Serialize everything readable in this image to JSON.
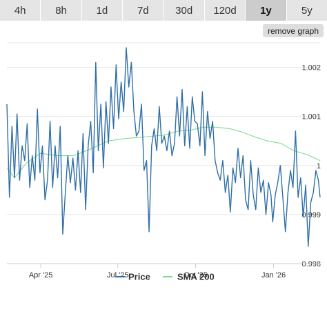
{
  "toolbar": {
    "tabs": [
      {
        "label": "4h"
      },
      {
        "label": "8h"
      },
      {
        "label": "1d"
      },
      {
        "label": "7d"
      },
      {
        "label": "30d"
      },
      {
        "label": "120d"
      },
      {
        "label": "1y"
      },
      {
        "label": "5y"
      }
    ],
    "active_tab": "1y",
    "remove_graph_label": "remove graph"
  },
  "colors": {
    "price": "#2f6ea8",
    "sma": "#7ddc90",
    "active_tab_bg": "#cccccc",
    "tab_bg": "#e5e5e5"
  },
  "chart_data": {
    "type": "line",
    "x_range": [
      "2025-02-20",
      "2026-02-25"
    ],
    "ylim": [
      0.998,
      1.0025
    ],
    "y_ticks": [
      {
        "value": 0.998,
        "label": "0.998"
      },
      {
        "value": 0.999,
        "label": "0.999"
      },
      {
        "value": 1.0,
        "label": "1"
      },
      {
        "value": 1.001,
        "label": "1.001"
      },
      {
        "value": 1.002,
        "label": "1.002"
      }
    ],
    "x_ticks": [
      {
        "date": "2025-04-01",
        "label": "Apr '25"
      },
      {
        "date": "2025-07-01",
        "label": "Jul '25"
      },
      {
        "date": "2025-10-01",
        "label": "Oct '25"
      },
      {
        "date": "2026-01-01",
        "label": "Jan '26"
      }
    ],
    "grid": true,
    "legend_position": "bottom",
    "series": [
      {
        "name": "Price",
        "points": [
          [
            "2025-02-20",
            1.00125
          ],
          [
            "2025-02-23",
            0.99935
          ],
          [
            "2025-02-26",
            1.0008
          ],
          [
            "2025-03-01",
            0.99975
          ],
          [
            "2025-03-04",
            1.00105
          ],
          [
            "2025-03-07",
            0.9997
          ],
          [
            "2025-03-10",
            1.0004
          ],
          [
            "2025-03-13",
            1.0001
          ],
          [
            "2025-03-16",
            1.00085
          ],
          [
            "2025-03-19",
            0.99955
          ],
          [
            "2025-03-22",
            1.0002
          ],
          [
            "2025-03-25",
            0.9997
          ],
          [
            "2025-03-28",
            1.00115
          ],
          [
            "2025-03-31",
            0.99985
          ],
          [
            "2025-04-03",
            1.0004
          ],
          [
            "2025-04-06",
            0.9993
          ],
          [
            "2025-04-09",
            0.9997
          ],
          [
            "2025-04-12",
            1.0009
          ],
          [
            "2025-04-15",
            0.99955
          ],
          [
            "2025-04-18",
            1.0004
          ],
          [
            "2025-04-21",
            0.99975
          ],
          [
            "2025-04-24",
            1.0008
          ],
          [
            "2025-04-27",
            0.9986
          ],
          [
            "2025-04-30",
            0.99945
          ],
          [
            "2025-05-03",
            1.0002
          ],
          [
            "2025-05-06",
            0.99965
          ],
          [
            "2025-05-09",
            1.00015
          ],
          [
            "2025-05-12",
            0.9995
          ],
          [
            "2025-05-15",
            1.0003
          ],
          [
            "2025-05-18",
            0.99945
          ],
          [
            "2025-05-21",
            1.00065
          ],
          [
            "2025-05-24",
            0.9991
          ],
          [
            "2025-05-27",
            1.0004
          ],
          [
            "2025-05-30",
            1.0009
          ],
          [
            "2025-06-02",
            0.99985
          ],
          [
            "2025-06-05",
            1.0021
          ],
          [
            "2025-06-08",
            1.0003
          ],
          [
            "2025-06-11",
            1.00125
          ],
          [
            "2025-06-14",
            0.99995
          ],
          [
            "2025-06-17",
            1.0013
          ],
          [
            "2025-06-20",
            1.00045
          ],
          [
            "2025-06-23",
            1.0016
          ],
          [
            "2025-06-26",
            1.00075
          ],
          [
            "2025-06-29",
            1.00205
          ],
          [
            "2025-07-02",
            1.00095
          ],
          [
            "2025-07-05",
            1.0017
          ],
          [
            "2025-07-08",
            1.0011
          ],
          [
            "2025-07-11",
            1.0024
          ],
          [
            "2025-07-14",
            1.0016
          ],
          [
            "2025-07-17",
            1.0021
          ],
          [
            "2025-07-20",
            1.0011
          ],
          [
            "2025-07-23",
            1.0006
          ],
          [
            "2025-07-26",
            1.0007
          ],
          [
            "2025-07-29",
            1.00125
          ],
          [
            "2025-08-01",
            0.9999
          ],
          [
            "2025-08-04",
            1.0001
          ],
          [
            "2025-08-07",
            0.99865
          ],
          [
            "2025-08-10",
            1.0004
          ],
          [
            "2025-08-13",
            1.00075
          ],
          [
            "2025-08-16",
            1.0003
          ],
          [
            "2025-08-19",
            1.0012
          ],
          [
            "2025-08-22",
            1.00045
          ],
          [
            "2025-08-25",
            1.0006
          ],
          [
            "2025-08-28",
            1.0003
          ],
          [
            "2025-08-31",
            1.0007
          ],
          [
            "2025-09-03",
            1.0002
          ],
          [
            "2025-09-06",
            1.00045
          ],
          [
            "2025-09-09",
            1.0014
          ],
          [
            "2025-09-12",
            1.0006
          ],
          [
            "2025-09-15",
            1.00155
          ],
          [
            "2025-09-18",
            1.0004
          ],
          [
            "2025-09-21",
            1.0012
          ],
          [
            "2025-09-24",
            1.00035
          ],
          [
            "2025-09-27",
            1.0014
          ],
          [
            "2025-09-30",
            1.0009
          ],
          [
            "2025-10-03",
            1.00085
          ],
          [
            "2025-10-06",
            1.0004
          ],
          [
            "2025-10-09",
            1.0015
          ],
          [
            "2025-10-12",
            1.0002
          ],
          [
            "2025-10-15",
            1.0011
          ],
          [
            "2025-10-18",
            1.00055
          ],
          [
            "2025-10-21",
            1.0009
          ],
          [
            "2025-10-24",
            1.0001
          ],
          [
            "2025-10-27",
            0.99985
          ],
          [
            "2025-10-30",
            0.9997
          ],
          [
            "2025-11-02",
            1.0001
          ],
          [
            "2025-11-05",
            0.99945
          ],
          [
            "2025-11-08",
            0.9998
          ],
          [
            "2025-11-11",
            0.99905
          ],
          [
            "2025-11-14",
            0.99995
          ],
          [
            "2025-11-17",
            0.99965
          ],
          [
            "2025-11-20",
            1.00035
          ],
          [
            "2025-11-23",
            0.99975
          ],
          [
            "2025-11-26",
            1.0002
          ],
          [
            "2025-11-29",
            0.9993
          ],
          [
            "2025-12-02",
            0.9991
          ],
          [
            "2025-12-05",
            1.0001
          ],
          [
            "2025-12-08",
            0.9994
          ],
          [
            "2025-12-11",
            0.9991
          ],
          [
            "2025-12-14",
            0.99995
          ],
          [
            "2025-12-17",
            0.99945
          ],
          [
            "2025-12-20",
            0.9997
          ],
          [
            "2025-12-23",
            0.999
          ],
          [
            "2025-12-26",
            0.99965
          ],
          [
            "2025-12-29",
            0.9994
          ],
          [
            "2025-12-31",
            0.99885
          ],
          [
            "2026-01-03",
            0.9994
          ],
          [
            "2026-01-06",
            0.99965
          ],
          [
            "2026-01-09",
            1.0
          ],
          [
            "2026-01-12",
            0.99935
          ],
          [
            "2026-01-15",
            0.99865
          ],
          [
            "2026-01-18",
            0.99945
          ],
          [
            "2026-01-21",
            0.9999
          ],
          [
            "2026-01-24",
            0.99955
          ],
          [
            "2026-01-27",
            1.0007
          ],
          [
            "2026-01-30",
            0.99935
          ],
          [
            "2026-02-02",
            0.99975
          ],
          [
            "2026-02-05",
            0.99895
          ],
          [
            "2026-02-08",
            0.9996
          ],
          [
            "2026-02-11",
            0.99835
          ],
          [
            "2026-02-14",
            0.99925
          ],
          [
            "2026-02-17",
            0.99945
          ],
          [
            "2026-02-20",
            0.9999
          ],
          [
            "2026-02-23",
            0.9997
          ],
          [
            "2026-02-25",
            0.99935
          ]
        ]
      },
      {
        "name": "SMA 200",
        "points": [
          [
            "2025-02-20",
            0.99995
          ],
          [
            "2025-03-01",
            0.99975
          ],
          [
            "2025-03-15",
            1.00005
          ],
          [
            "2025-04-01",
            1.00025
          ],
          [
            "2025-04-20",
            1.0002
          ],
          [
            "2025-05-10",
            1.0002
          ],
          [
            "2025-06-01",
            1.00035
          ],
          [
            "2025-06-20",
            1.0005
          ],
          [
            "2025-07-10",
            1.00055
          ],
          [
            "2025-08-01",
            1.00058
          ],
          [
            "2025-08-25",
            1.00062
          ],
          [
            "2025-09-10",
            1.0007
          ],
          [
            "2025-09-25",
            1.00072
          ],
          [
            "2025-10-10",
            1.00078
          ],
          [
            "2025-10-25",
            1.00078
          ],
          [
            "2025-11-10",
            1.00075
          ],
          [
            "2025-11-25",
            1.00068
          ],
          [
            "2025-12-10",
            1.00058
          ],
          [
            "2025-12-25",
            1.0005
          ],
          [
            "2026-01-10",
            1.00045
          ],
          [
            "2026-01-25",
            1.0003
          ],
          [
            "2026-02-10",
            1.00022
          ],
          [
            "2026-02-25",
            1.0001
          ]
        ]
      }
    ]
  }
}
